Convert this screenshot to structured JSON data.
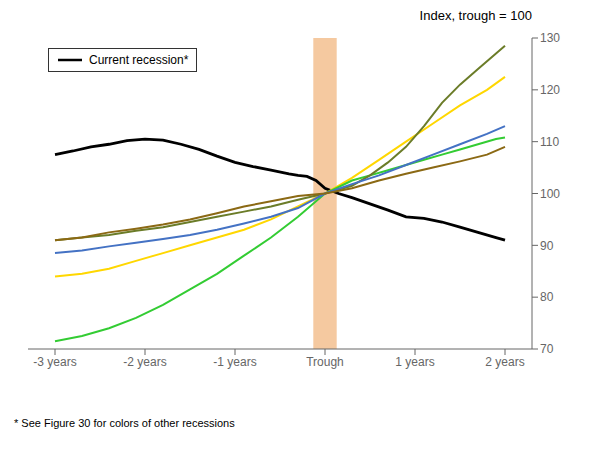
{
  "chart_data": {
    "type": "line",
    "title": "Index, trough = 100",
    "footnote": "* See Figure 30 for colors of other recessions",
    "xlim": [
      -3.3,
      2.3
    ],
    "xticks": [
      {
        "value": -3,
        "label": "-3 years"
      },
      {
        "value": -2,
        "label": "-2 years"
      },
      {
        "value": -1,
        "label": "-1 years"
      },
      {
        "value": 0,
        "label": "Trough"
      },
      {
        "value": 1,
        "label": "1 years"
      },
      {
        "value": 2,
        "label": "2 years"
      }
    ],
    "ylim": [
      70,
      130
    ],
    "yticks": [
      70,
      80,
      90,
      100,
      110,
      120,
      130
    ],
    "grid": false,
    "legend": "upper left",
    "bands": [
      {
        "x": [
          -0.13,
          0.13
        ],
        "color": "#f5c9a0"
      }
    ],
    "series": [
      {
        "name": "Current recession*",
        "color": "#000000",
        "x": [
          -3.0,
          -2.8,
          -2.6,
          -2.4,
          -2.2,
          -2.0,
          -1.8,
          -1.6,
          -1.4,
          -1.2,
          -1.0,
          -0.8,
          -0.6,
          -0.4,
          -0.3,
          -0.2,
          -0.1,
          0.0,
          0.15,
          0.3,
          0.5,
          0.7,
          0.9,
          1.1,
          1.3,
          1.5,
          1.7,
          1.9,
          2.0
        ],
        "values": [
          107.5,
          108.2,
          109.0,
          109.5,
          110.2,
          110.5,
          110.3,
          109.5,
          108.5,
          107.2,
          106.0,
          105.2,
          104.5,
          103.8,
          103.5,
          103.3,
          102.5,
          101.0,
          100.0,
          99.2,
          98.0,
          96.8,
          95.5,
          95.2,
          94.5,
          93.5,
          92.5,
          91.5,
          91.0
        ]
      },
      {
        "color": "#ffd700",
        "x": [
          -3.0,
          -2.7,
          -2.4,
          -2.1,
          -1.8,
          -1.5,
          -1.2,
          -0.9,
          -0.6,
          -0.3,
          0.0,
          0.3,
          0.6,
          0.9,
          1.2,
          1.5,
          1.8,
          2.0
        ],
        "values": [
          84.0,
          84.5,
          85.5,
          87.0,
          88.5,
          90.0,
          91.5,
          93.0,
          95.0,
          97.5,
          100.0,
          103.0,
          106.5,
          110.0,
          113.5,
          117.0,
          120.0,
          122.5
        ]
      },
      {
        "color": "#33cc33",
        "x": [
          -3.0,
          -2.7,
          -2.4,
          -2.1,
          -1.8,
          -1.5,
          -1.2,
          -0.9,
          -0.6,
          -0.3,
          0.0,
          0.3,
          0.5,
          0.7,
          0.9,
          1.1,
          1.3,
          1.5,
          1.7,
          1.9,
          2.0
        ],
        "values": [
          71.5,
          72.5,
          74.0,
          76.0,
          78.5,
          81.5,
          84.5,
          88.0,
          91.5,
          95.5,
          100.0,
          102.5,
          103.5,
          104.5,
          105.5,
          106.5,
          107.5,
          108.5,
          109.5,
          110.5,
          110.8
        ]
      },
      {
        "color": "#6b7c28",
        "x": [
          -3.0,
          -2.7,
          -2.4,
          -2.1,
          -1.8,
          -1.5,
          -1.2,
          -0.9,
          -0.6,
          -0.3,
          0.0,
          0.3,
          0.5,
          0.7,
          0.9,
          1.1,
          1.3,
          1.5,
          1.7,
          1.9,
          2.0
        ],
        "values": [
          91.0,
          91.5,
          92.0,
          92.8,
          93.5,
          94.5,
          95.5,
          96.5,
          97.5,
          98.8,
          100.0,
          101.5,
          103.5,
          106.0,
          109.0,
          113.0,
          117.5,
          121.0,
          124.0,
          127.0,
          128.5
        ]
      },
      {
        "color": "#4472c4",
        "x": [
          -3.0,
          -2.7,
          -2.4,
          -2.1,
          -1.8,
          -1.5,
          -1.2,
          -0.9,
          -0.6,
          -0.3,
          0.0,
          0.3,
          0.6,
          0.9,
          1.2,
          1.5,
          1.8,
          2.0
        ],
        "values": [
          88.5,
          89.0,
          89.8,
          90.5,
          91.2,
          92.0,
          93.0,
          94.2,
          95.5,
          97.2,
          100.0,
          101.8,
          103.5,
          105.5,
          107.5,
          109.5,
          111.5,
          113.0
        ]
      },
      {
        "color": "#8b6914",
        "x": [
          -3.0,
          -2.7,
          -2.4,
          -2.1,
          -1.8,
          -1.5,
          -1.2,
          -0.9,
          -0.6,
          -0.3,
          0.0,
          0.3,
          0.6,
          0.9,
          1.2,
          1.5,
          1.8,
          2.0
        ],
        "values": [
          91.0,
          91.5,
          92.5,
          93.2,
          94.0,
          95.0,
          96.2,
          97.5,
          98.5,
          99.5,
          100.0,
          101.0,
          102.5,
          103.8,
          105.0,
          106.2,
          107.5,
          109.0
        ]
      }
    ]
  }
}
